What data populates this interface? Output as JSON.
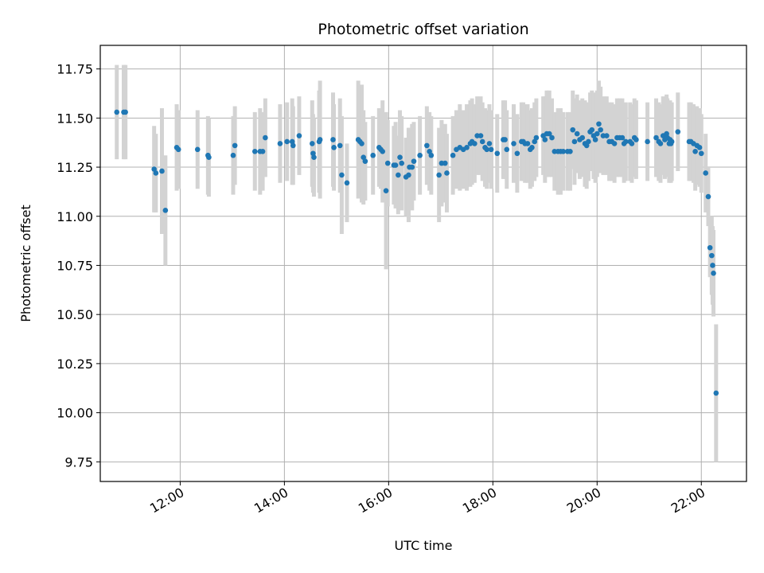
{
  "chart_data": {
    "type": "scatter",
    "title": "Photometric offset variation",
    "xlabel": "UTC time",
    "ylabel": "Photometric offset",
    "x_ticks": [
      "12:00",
      "14:00",
      "16:00",
      "18:00",
      "20:00",
      "22:00"
    ],
    "y_ticks": [
      "9.75",
      "10.00",
      "10.25",
      "10.50",
      "10.75",
      "11.00",
      "11.25",
      "11.50",
      "11.75"
    ],
    "xlim": [
      "10:28",
      "22:52"
    ],
    "ylim": [
      9.65,
      11.87
    ],
    "grid": true,
    "colors": {
      "marker": "#1f77b4",
      "errorbar": "#d3d3d3",
      "grid": "#b0b0b0"
    },
    "series": [
      {
        "points": [
          [
            "10:47",
            11.53,
            0.24
          ],
          [
            "10:55",
            11.53,
            0.24
          ],
          [
            "10:57",
            11.53,
            0.24
          ],
          [
            "11:30",
            11.24,
            0.22
          ],
          [
            "11:32",
            11.22,
            0.2
          ],
          [
            "11:39",
            11.23,
            0.32
          ],
          [
            "11:43",
            11.03,
            0.28
          ],
          [
            "11:56",
            11.35,
            0.22
          ],
          [
            "11:58",
            11.34,
            0.2
          ],
          [
            "12:20",
            11.34,
            0.2
          ],
          [
            "12:32",
            11.31,
            0.2
          ],
          [
            "12:33",
            11.3,
            0.2
          ],
          [
            "13:01",
            11.31,
            0.2
          ],
          [
            "13:03",
            11.36,
            0.2
          ],
          [
            "13:26",
            11.33,
            0.2
          ],
          [
            "13:32",
            11.33,
            0.22
          ],
          [
            "13:35",
            11.33,
            0.2
          ],
          [
            "13:38",
            11.4,
            0.2
          ],
          [
            "13:55",
            11.37,
            0.2
          ],
          [
            "14:03",
            11.38,
            0.2
          ],
          [
            "14:09",
            11.38,
            0.22
          ],
          [
            "14:10",
            11.36,
            0.2
          ],
          [
            "14:17",
            11.41,
            0.2
          ],
          [
            "14:32",
            11.37,
            0.22
          ],
          [
            "14:33",
            11.32,
            0.2
          ],
          [
            "14:34",
            11.3,
            0.2
          ],
          [
            "14:40",
            11.38,
            0.26
          ],
          [
            "14:41",
            11.39,
            0.3
          ],
          [
            "14:56",
            11.39,
            0.24
          ],
          [
            "14:57",
            11.35,
            0.22
          ],
          [
            "15:04",
            11.36,
            0.24
          ],
          [
            "15:06",
            11.21,
            0.3
          ],
          [
            "15:12",
            11.17,
            0.2
          ],
          [
            "15:25",
            11.39,
            0.3
          ],
          [
            "15:27",
            11.38,
            0.26
          ],
          [
            "15:29",
            11.37,
            0.3
          ],
          [
            "15:31",
            11.3,
            0.24
          ],
          [
            "15:33",
            11.28,
            0.2
          ],
          [
            "15:42",
            11.31,
            0.2
          ],
          [
            "15:49",
            11.35,
            0.2
          ],
          [
            "15:51",
            11.34,
            0.2
          ],
          [
            "15:53",
            11.33,
            0.26
          ],
          [
            "15:57",
            11.13,
            0.4
          ],
          [
            "15:59",
            11.27,
            0.22
          ],
          [
            "16:06",
            11.26,
            0.2
          ],
          [
            "16:08",
            11.26,
            0.22
          ],
          [
            "16:11",
            11.21,
            0.2
          ],
          [
            "16:13",
            11.3,
            0.24
          ],
          [
            "16:15",
            11.27,
            0.24
          ],
          [
            "16:20",
            11.2,
            0.2
          ],
          [
            "16:23",
            11.21,
            0.24
          ],
          [
            "16:24",
            11.25,
            0.2
          ],
          [
            "16:27",
            11.25,
            0.22
          ],
          [
            "16:29",
            11.28,
            0.2
          ],
          [
            "16:36",
            11.31,
            0.2
          ],
          [
            "16:44",
            11.36,
            0.2
          ],
          [
            "16:47",
            11.33,
            0.2
          ],
          [
            "16:49",
            11.31,
            0.2
          ],
          [
            "16:58",
            11.21,
            0.24
          ],
          [
            "17:01",
            11.27,
            0.22
          ],
          [
            "17:05",
            11.27,
            0.2
          ],
          [
            "17:07",
            11.22,
            0.2
          ],
          [
            "17:14",
            11.31,
            0.2
          ],
          [
            "17:18",
            11.34,
            0.2
          ],
          [
            "17:22",
            11.35,
            0.22
          ],
          [
            "17:26",
            11.34,
            0.2
          ],
          [
            "17:30",
            11.35,
            0.22
          ],
          [
            "17:34",
            11.37,
            0.22
          ],
          [
            "17:36",
            11.38,
            0.22
          ],
          [
            "17:39",
            11.37,
            0.2
          ],
          [
            "17:42",
            11.41,
            0.2
          ],
          [
            "17:46",
            11.41,
            0.2
          ],
          [
            "17:48",
            11.38,
            0.2
          ],
          [
            "17:51",
            11.35,
            0.2
          ],
          [
            "17:53",
            11.34,
            0.2
          ],
          [
            "17:56",
            11.37,
            0.2
          ],
          [
            "17:58",
            11.34,
            0.2
          ],
          [
            "18:05",
            11.32,
            0.2
          ],
          [
            "18:12",
            11.39,
            0.2
          ],
          [
            "18:14",
            11.39,
            0.2
          ],
          [
            "18:16",
            11.34,
            0.2
          ],
          [
            "18:24",
            11.37,
            0.2
          ],
          [
            "18:28",
            11.32,
            0.2
          ],
          [
            "18:33",
            11.38,
            0.2
          ],
          [
            "18:35",
            11.38,
            0.2
          ],
          [
            "18:37",
            11.37,
            0.2
          ],
          [
            "18:40",
            11.37,
            0.2
          ],
          [
            "18:43",
            11.34,
            0.2
          ],
          [
            "18:45",
            11.35,
            0.2
          ],
          [
            "18:48",
            11.38,
            0.2
          ],
          [
            "18:50",
            11.4,
            0.2
          ],
          [
            "18:58",
            11.41,
            0.2
          ],
          [
            "19:00",
            11.39,
            0.22
          ],
          [
            "19:02",
            11.42,
            0.22
          ],
          [
            "19:05",
            11.42,
            0.22
          ],
          [
            "19:08",
            11.4,
            0.2
          ],
          [
            "19:11",
            11.33,
            0.2
          ],
          [
            "19:15",
            11.33,
            0.22
          ],
          [
            "19:18",
            11.33,
            0.22
          ],
          [
            "19:21",
            11.33,
            0.2
          ],
          [
            "19:26",
            11.33,
            0.2
          ],
          [
            "19:29",
            11.33,
            0.2
          ],
          [
            "19:32",
            11.44,
            0.2
          ],
          [
            "19:34",
            11.38,
            0.22
          ],
          [
            "19:37",
            11.42,
            0.2
          ],
          [
            "19:40",
            11.39,
            0.2
          ],
          [
            "19:43",
            11.4,
            0.2
          ],
          [
            "19:46",
            11.37,
            0.22
          ],
          [
            "19:48",
            11.36,
            0.22
          ],
          [
            "19:50",
            11.38,
            0.2
          ],
          [
            "19:52",
            11.43,
            0.2
          ],
          [
            "19:54",
            11.44,
            0.2
          ],
          [
            "19:56",
            11.41,
            0.22
          ],
          [
            "19:58",
            11.39,
            0.22
          ],
          [
            "20:00",
            11.42,
            0.22
          ],
          [
            "20:02",
            11.47,
            0.22
          ],
          [
            "20:04",
            11.44,
            0.22
          ],
          [
            "20:07",
            11.41,
            0.2
          ],
          [
            "20:11",
            11.41,
            0.2
          ],
          [
            "20:14",
            11.38,
            0.2
          ],
          [
            "20:17",
            11.38,
            0.2
          ],
          [
            "20:20",
            11.37,
            0.2
          ],
          [
            "20:23",
            11.4,
            0.2
          ],
          [
            "20:26",
            11.4,
            0.2
          ],
          [
            "20:29",
            11.4,
            0.2
          ],
          [
            "20:31",
            11.37,
            0.2
          ],
          [
            "20:33",
            11.38,
            0.2
          ],
          [
            "20:38",
            11.38,
            0.2
          ],
          [
            "20:40",
            11.37,
            0.2
          ],
          [
            "20:43",
            11.4,
            0.2
          ],
          [
            "20:45",
            11.39,
            0.2
          ],
          [
            "20:58",
            11.38,
            0.2
          ],
          [
            "21:08",
            11.4,
            0.2
          ],
          [
            "21:11",
            11.38,
            0.2
          ],
          [
            "21:13",
            11.37,
            0.2
          ],
          [
            "21:16",
            11.41,
            0.2
          ],
          [
            "21:18",
            11.39,
            0.2
          ],
          [
            "21:20",
            11.42,
            0.2
          ],
          [
            "21:21",
            11.4,
            0.2
          ],
          [
            "21:23",
            11.37,
            0.2
          ],
          [
            "21:24",
            11.39,
            0.2
          ],
          [
            "21:25",
            11.37,
            0.2
          ],
          [
            "21:26",
            11.38,
            0.2
          ],
          [
            "21:33",
            11.43,
            0.2
          ],
          [
            "21:46",
            11.38,
            0.2
          ],
          [
            "21:48",
            11.38,
            0.2
          ],
          [
            "21:51",
            11.37,
            0.2
          ],
          [
            "21:53",
            11.33,
            0.2
          ],
          [
            "21:55",
            11.36,
            0.2
          ],
          [
            "21:58",
            11.35,
            0.2
          ],
          [
            "22:00",
            11.32,
            0.2
          ],
          [
            "22:05",
            11.22,
            0.2
          ],
          [
            "22:08",
            11.1,
            0.15
          ],
          [
            "22:10",
            10.84,
            0.15
          ],
          [
            "22:12",
            10.8,
            0.2
          ],
          [
            "22:13",
            10.75,
            0.2
          ],
          [
            "22:14",
            10.71,
            0.22
          ],
          [
            "22:17",
            10.1,
            0.35
          ]
        ]
      }
    ]
  }
}
